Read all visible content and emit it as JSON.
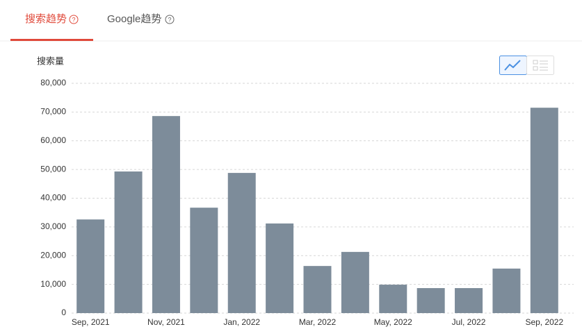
{
  "tabs": [
    "搜索趋势",
    "Google趋势"
  ],
  "chart_data": {
    "type": "bar",
    "y_label": "搜索量",
    "categories": [
      "Sep, 2021",
      null,
      "Nov, 2021",
      null,
      "Jan, 2022",
      null,
      "Mar, 2022",
      null,
      "May, 2022",
      null,
      "Jul, 2022",
      null,
      "Sep, 2022"
    ],
    "values": [
      32600,
      49300,
      68600,
      36700,
      48800,
      31200,
      16400,
      21300,
      9900,
      8700,
      8700,
      15500,
      71500
    ],
    "color": "#7d8c9a",
    "ylim": [
      0,
      80000
    ],
    "yticks": [
      0,
      {
        "value": 10000,
        "label": "10,000"
      },
      {
        "value": 20000,
        "label": "20,000"
      },
      {
        "value": 30000,
        "label": "30,000"
      },
      {
        "value": 40000,
        "label": "40,000"
      },
      {
        "value": 50000,
        "label": "50,000"
      },
      {
        "value": 60000,
        "label": "60,000"
      },
      {
        "value": 70000,
        "label": "70,000"
      },
      {
        "value": 80000,
        "label": "80,000"
      }
    ],
    "grid": true
  }
}
